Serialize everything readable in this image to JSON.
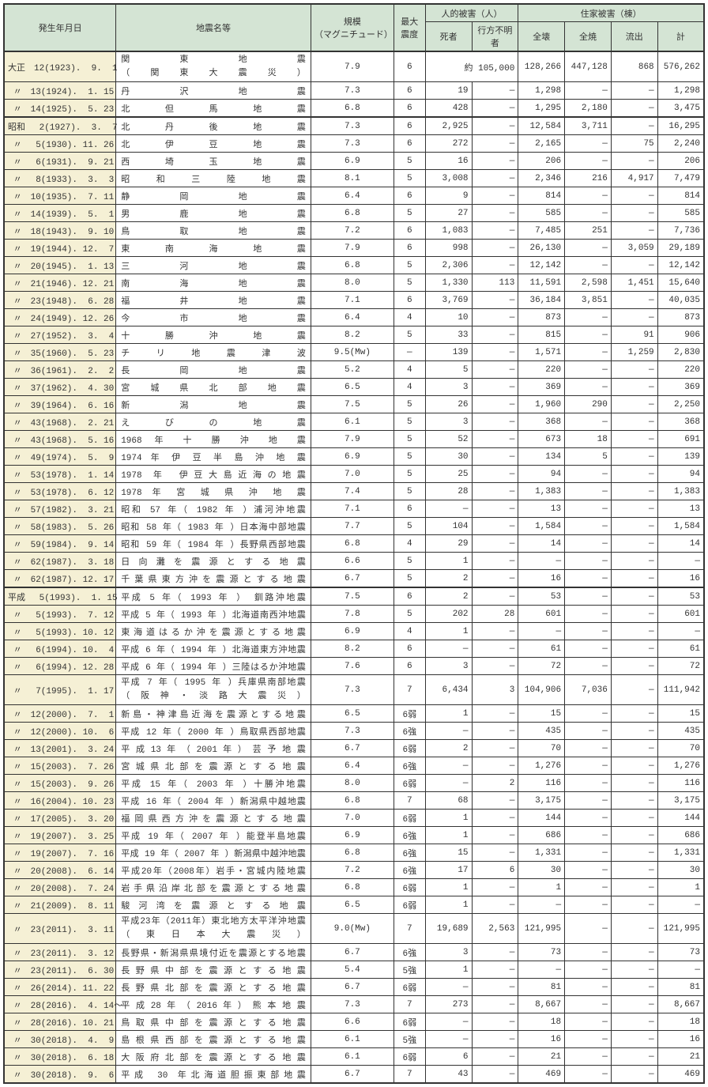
{
  "headers": {
    "date": "発生年月日",
    "name": "地震名等",
    "magnitude": "規模\n（マグニチュード）",
    "intensity": "最大\n震度",
    "human_damage": "人的被害（人）",
    "deaths": "死者",
    "missing": "行方不明者",
    "house_damage": "住家被害（棟）",
    "destroyed": "全壊",
    "burned": "全焼",
    "washed": "流出",
    "total": "計"
  },
  "rows": [
    {
      "era": "taisho",
      "estart": true,
      "date": "大正　12(1923).  9.  1",
      "name": "関　　　東　　　地　　　震\n（　関　東　大　震　災　）",
      "mag": "7.9",
      "int": "6",
      "d": "",
      "m": "約 105,000",
      "dest": "128,266",
      "burn": "447,128",
      "wash": "868",
      "tot": "576,262",
      "nameLines": 2
    },
    {
      "era": "taisho",
      "date": " 〃　13(1924).  1. 15",
      "name": "丹　　沢　　地　　震",
      "mag": "7.3",
      "int": "6",
      "d": "19",
      "m": "—",
      "dest": "1,298",
      "burn": "—",
      "wash": "—",
      "tot": "1,298"
    },
    {
      "era": "taisho",
      "date": " 〃　14(1925).  5. 23",
      "name": "北　但　馬　地　震",
      "mag": "6.8",
      "int": "6",
      "d": "428",
      "m": "—",
      "dest": "1,295",
      "burn": "2,180",
      "wash": "—",
      "tot": "3,475"
    },
    {
      "era": "showa",
      "estart": true,
      "date": "昭和　 2(1927).  3.  7",
      "name": "北　丹　後　地　震",
      "mag": "7.3",
      "int": "6",
      "d": "2,925",
      "m": "—",
      "dest": "12,584",
      "burn": "3,711",
      "wash": "—",
      "tot": "16,295"
    },
    {
      "era": "showa",
      "date": " 〃　 5(1930). 11. 26",
      "name": "北　伊　豆　地　震",
      "mag": "7.3",
      "int": "6",
      "d": "272",
      "m": "—",
      "dest": "2,165",
      "burn": "—",
      "wash": "75",
      "tot": "2,240"
    },
    {
      "era": "showa",
      "date": " 〃　 6(1931).  9. 21",
      "name": "西　埼　玉　地　震",
      "mag": "6.9",
      "int": "5",
      "d": "16",
      "m": "—",
      "dest": "206",
      "burn": "—",
      "wash": "—",
      "tot": "206"
    },
    {
      "era": "showa",
      "date": " 〃　 8(1933).  3.  3",
      "name": "昭　和　三　陸　地　震",
      "mag": "8.1",
      "int": "5",
      "d": "3,008",
      "m": "—",
      "dest": "2,346",
      "burn": "216",
      "wash": "4,917",
      "tot": "7,479"
    },
    {
      "era": "showa",
      "date": " 〃　10(1935).  7. 11",
      "name": "静　　岡　　地　　震",
      "mag": "6.4",
      "int": "6",
      "d": "9",
      "m": "—",
      "dest": "814",
      "burn": "—",
      "wash": "—",
      "tot": "814"
    },
    {
      "era": "showa",
      "date": " 〃　14(1939).  5.  1",
      "name": "男　　鹿　　地　　震",
      "mag": "6.8",
      "int": "5",
      "d": "27",
      "m": "—",
      "dest": "585",
      "burn": "—",
      "wash": "—",
      "tot": "585"
    },
    {
      "era": "showa",
      "date": " 〃　18(1943).  9. 10",
      "name": "鳥　　取　　地　　震",
      "mag": "7.2",
      "int": "6",
      "d": "1,083",
      "m": "—",
      "dest": "7,485",
      "burn": "251",
      "wash": "—",
      "tot": "7,736"
    },
    {
      "era": "showa",
      "date": " 〃　19(1944). 12.  7",
      "name": "東　南　海　地　震",
      "mag": "7.9",
      "int": "6",
      "d": "998",
      "m": "—",
      "dest": "26,130",
      "burn": "—",
      "wash": "3,059",
      "tot": "29,189"
    },
    {
      "era": "showa",
      "date": " 〃　20(1945).  1. 13",
      "name": "三　　河　　地　　震",
      "mag": "6.8",
      "int": "5",
      "d": "2,306",
      "m": "—",
      "dest": "12,142",
      "burn": "—",
      "wash": "—",
      "tot": "12,142"
    },
    {
      "era": "showa",
      "date": " 〃　21(1946). 12. 21",
      "name": "南　　海　　地　　震",
      "mag": "8.0",
      "int": "5",
      "d": "1,330",
      "m": "113",
      "dest": "11,591",
      "burn": "2,598",
      "wash": "1,451",
      "tot": "15,640"
    },
    {
      "era": "showa",
      "date": " 〃　23(1948).  6. 28",
      "name": "福　　井　　地　　震",
      "mag": "7.1",
      "int": "6",
      "d": "3,769",
      "m": "—",
      "dest": "36,184",
      "burn": "3,851",
      "wash": "—",
      "tot": "40,035"
    },
    {
      "era": "showa",
      "date": " 〃　24(1949). 12. 26",
      "name": "今　　市　　地　　震",
      "mag": "6.4",
      "int": "4",
      "d": "10",
      "m": "—",
      "dest": "873",
      "burn": "—",
      "wash": "—",
      "tot": "873"
    },
    {
      "era": "showa",
      "date": " 〃　27(1952).  3.  4",
      "name": "十　勝　沖　地　震",
      "mag": "8.2",
      "int": "5",
      "d": "33",
      "m": "—",
      "dest": "815",
      "burn": "—",
      "wash": "91",
      "tot": "906"
    },
    {
      "era": "showa",
      "date": " 〃　35(1960).  5. 23",
      "name": "チ　リ　地　震　津　波",
      "mag": "9.5(Mw)",
      "int": "—",
      "d": "139",
      "m": "—",
      "dest": "1,571",
      "burn": "—",
      "wash": "1,259",
      "tot": "2,830"
    },
    {
      "era": "showa",
      "date": " 〃　36(1961).  2.  2",
      "name": "長　　岡　　地　　震",
      "mag": "5.2",
      "int": "4",
      "d": "5",
      "m": "—",
      "dest": "220",
      "burn": "—",
      "wash": "—",
      "tot": "220"
    },
    {
      "era": "showa",
      "date": " 〃　37(1962).  4. 30",
      "name": "宮 城 県 北 部 地 震",
      "mag": "6.5",
      "int": "4",
      "d": "3",
      "m": "—",
      "dest": "369",
      "burn": "—",
      "wash": "—",
      "tot": "369"
    },
    {
      "era": "showa",
      "date": " 〃　39(1964).  6. 16",
      "name": "新　　潟　　地　　震",
      "mag": "7.5",
      "int": "5",
      "d": "26",
      "m": "—",
      "dest": "1,960",
      "burn": "290",
      "wash": "—",
      "tot": "2,250"
    },
    {
      "era": "showa",
      "date": " 〃　43(1968).  2. 21",
      "name": "え び の 地 震",
      "mag": "6.1",
      "int": "5",
      "d": "3",
      "m": "—",
      "dest": "368",
      "burn": "—",
      "wash": "—",
      "tot": "368"
    },
    {
      "era": "showa",
      "date": " 〃　43(1968).  5. 16",
      "name": "1968 年 十 勝 沖 地 震",
      "mag": "7.9",
      "int": "5",
      "d": "52",
      "m": "—",
      "dest": "673",
      "burn": "18",
      "wash": "—",
      "tot": "691"
    },
    {
      "era": "showa",
      "date": " 〃　49(1974).  5.  9",
      "name": "1974 年 伊 豆 半 島 沖 地 震",
      "mag": "6.9",
      "int": "5",
      "d": "30",
      "m": "—",
      "dest": "134",
      "burn": "5",
      "wash": "—",
      "tot": "139"
    },
    {
      "era": "showa",
      "date": " 〃　53(1978).  1. 14",
      "name": "1978 年 伊豆大島近海の地震",
      "mag": "7.0",
      "int": "5",
      "d": "25",
      "m": "—",
      "dest": "94",
      "burn": "—",
      "wash": "—",
      "tot": "94"
    },
    {
      "era": "showa",
      "date": " 〃　53(1978).  6. 12",
      "name": "1978 年 宮 城 県 沖 地 震",
      "mag": "7.4",
      "int": "5",
      "d": "28",
      "m": "—",
      "dest": "1,383",
      "burn": "—",
      "wash": "—",
      "tot": "1,383"
    },
    {
      "era": "showa",
      "date": " 〃　57(1982).  3. 21",
      "name": "昭和 57 年（ 1982 年 ）浦河沖地震",
      "mag": "7.1",
      "int": "6",
      "d": "—",
      "m": "—",
      "dest": "13",
      "burn": "—",
      "wash": "—",
      "tot": "13"
    },
    {
      "era": "showa",
      "date": " 〃　58(1983).  5. 26",
      "name": "昭和 58 年（ 1983 年 ）日本海中部地震",
      "mag": "7.7",
      "int": "5",
      "d": "104",
      "m": "—",
      "dest": "1,584",
      "burn": "—",
      "wash": "—",
      "tot": "1,584"
    },
    {
      "era": "showa",
      "date": " 〃　59(1984).  9. 14",
      "name": "昭和 59 年（ 1984 年 ）長野県西部地震",
      "mag": "6.8",
      "int": "4",
      "d": "29",
      "m": "—",
      "dest": "14",
      "burn": "—",
      "wash": "—",
      "tot": "14"
    },
    {
      "era": "showa",
      "date": " 〃　62(1987).  3. 18",
      "name": "日 向 灘 を 震 源 と す る 地 震",
      "mag": "6.6",
      "int": "5",
      "d": "1",
      "m": "—",
      "dest": "—",
      "burn": "—",
      "wash": "—",
      "tot": "—"
    },
    {
      "era": "showa",
      "date": " 〃　62(1987). 12. 17",
      "name": "千葉県東方沖を震源とする地震",
      "mag": "6.7",
      "int": "5",
      "d": "2",
      "m": "—",
      "dest": "16",
      "burn": "—",
      "wash": "—",
      "tot": "16"
    },
    {
      "era": "heisei",
      "estart": true,
      "date": "平成　 5(1993).  1. 15",
      "name": "平成 5 年（ 1993 年 ） 釧路沖地震",
      "mag": "7.5",
      "int": "6",
      "d": "2",
      "m": "—",
      "dest": "53",
      "burn": "—",
      "wash": "—",
      "tot": "53"
    },
    {
      "era": "heisei",
      "date": " 〃　 5(1993).  7. 12",
      "name": "平成 5 年（ 1993 年 ）北海道南西沖地震",
      "mag": "7.8",
      "int": "5",
      "d": "202",
      "m": "28",
      "dest": "601",
      "burn": "—",
      "wash": "—",
      "tot": "601"
    },
    {
      "era": "heisei",
      "date": " 〃　 5(1993). 10. 12",
      "name": "東海道はるか沖を震源とする地震",
      "mag": "6.9",
      "int": "4",
      "d": "1",
      "m": "—",
      "dest": "—",
      "burn": "—",
      "wash": "—",
      "tot": "—"
    },
    {
      "era": "heisei",
      "date": " 〃　 6(1994). 10.  4",
      "name": "平成 6 年（ 1994 年 ）北海道東方沖地震",
      "mag": "8.2",
      "int": "6",
      "d": "—",
      "m": "—",
      "dest": "61",
      "burn": "—",
      "wash": "—",
      "tot": "61"
    },
    {
      "era": "heisei",
      "date": " 〃　 6(1994). 12. 28",
      "name": "平成 6 年（ 1994 年 ）三陸はるか沖地震",
      "mag": "7.6",
      "int": "6",
      "d": "3",
      "m": "—",
      "dest": "72",
      "burn": "—",
      "wash": "—",
      "tot": "72"
    },
    {
      "era": "heisei",
      "date": " 〃　 7(1995).  1. 17",
      "name": "平成 7 年（ 1995 年 ）兵庫県南部地震\n（ 阪 神 ・ 淡 路 大 震 災 ）",
      "mag": "7.3",
      "int": "7",
      "d": "6,434",
      "m": "3",
      "dest": "104,906",
      "burn": "7,036",
      "wash": "—",
      "tot": "111,942",
      "nameLines": 2
    },
    {
      "era": "heisei",
      "date": " 〃　12(2000).  7.  1",
      "name": "新島・神津島近海を震源とする地震",
      "mag": "6.5",
      "int": "6弱",
      "d": "1",
      "m": "—",
      "dest": "15",
      "burn": "—",
      "wash": "—",
      "tot": "15"
    },
    {
      "era": "heisei",
      "date": " 〃　12(2000). 10.  6",
      "name": "平成 12 年（ 2000 年 ）鳥取県西部地震",
      "mag": "7.3",
      "int": "6強",
      "d": "—",
      "m": "—",
      "dest": "435",
      "burn": "—",
      "wash": "—",
      "tot": "435"
    },
    {
      "era": "heisei",
      "date": " 〃　13(2001).  3. 24",
      "name": "平 成 13 年 （ 2001 年 ） 芸 予 地 震",
      "mag": "6.7",
      "int": "6弱",
      "d": "2",
      "m": "—",
      "dest": "70",
      "burn": "—",
      "wash": "—",
      "tot": "70"
    },
    {
      "era": "heisei",
      "date": " 〃　15(2003).  7. 26",
      "name": "宮 城 県 北 部 を 震 源 と す る 地 震",
      "mag": "6.4",
      "int": "6強",
      "d": "—",
      "m": "—",
      "dest": "1,276",
      "burn": "—",
      "wash": "—",
      "tot": "1,276"
    },
    {
      "era": "heisei",
      "date": " 〃　15(2003).  9. 26",
      "name": "平成 15 年（ 2003 年 ）十勝沖地震",
      "mag": "8.0",
      "int": "6弱",
      "d": "—",
      "m": "2",
      "dest": "116",
      "burn": "—",
      "wash": "—",
      "tot": "116"
    },
    {
      "era": "heisei",
      "date": " 〃　16(2004). 10. 23",
      "name": "平成 16 年（ 2004 年 ）新潟県中越地震",
      "mag": "6.8",
      "int": "7",
      "d": "68",
      "m": "—",
      "dest": "3,175",
      "burn": "—",
      "wash": "—",
      "tot": "3,175"
    },
    {
      "era": "heisei",
      "date": " 〃　17(2005).  3. 20",
      "name": "福岡県西方沖を震源とする地震",
      "mag": "7.0",
      "int": "6弱",
      "d": "1",
      "m": "—",
      "dest": "144",
      "burn": "—",
      "wash": "—",
      "tot": "144"
    },
    {
      "era": "heisei",
      "date": " 〃　19(2007).  3. 25",
      "name": "平成 19 年（ 2007 年 ）能登半島地震",
      "mag": "6.9",
      "int": "6強",
      "d": "1",
      "m": "—",
      "dest": "686",
      "burn": "—",
      "wash": "—",
      "tot": "686"
    },
    {
      "era": "heisei",
      "date": " 〃　19(2007).  7. 16",
      "name": "平成 19 年（ 2007 年 ）新潟県中越沖地震",
      "mag": "6.8",
      "int": "6強",
      "d": "15",
      "m": "—",
      "dest": "1,331",
      "burn": "—",
      "wash": "—",
      "tot": "1,331"
    },
    {
      "era": "heisei",
      "date": " 〃　20(2008).  6. 14",
      "name": "平成20年（2008年）岩手・宮城内陸地震",
      "mag": "7.2",
      "int": "6強",
      "d": "17",
      "m": "6",
      "dest": "30",
      "burn": "—",
      "wash": "—",
      "tot": "30"
    },
    {
      "era": "heisei",
      "date": " 〃　20(2008).  7. 24",
      "name": "岩手県沿岸北部を震源とする地震",
      "mag": "6.8",
      "int": "6弱",
      "d": "1",
      "m": "—",
      "dest": "1",
      "burn": "—",
      "wash": "—",
      "tot": "1"
    },
    {
      "era": "heisei",
      "date": " 〃　21(2009).  8. 11",
      "name": "駿 河 湾 を 震 源 と す る 地 震",
      "mag": "6.5",
      "int": "6弱",
      "d": "1",
      "m": "—",
      "dest": "—",
      "burn": "—",
      "wash": "—",
      "tot": "—"
    },
    {
      "era": "heisei",
      "date": " 〃　23(2011).  3. 11",
      "name": "平成23年（2011年）東北地方太平洋沖地震\n（ 東 日 本 大 震 災 ）",
      "mag": "9.0(Mw)",
      "int": "7",
      "d": "19,689",
      "m": "2,563",
      "dest": "121,995",
      "burn": "—",
      "wash": "—",
      "tot": "121,995",
      "nameLines": 2
    },
    {
      "era": "heisei",
      "date": " 〃　23(2011).  3. 12",
      "name": "長野県・新潟県県境付近を震源とする地震",
      "mag": "6.7",
      "int": "6強",
      "d": "3",
      "m": "—",
      "dest": "73",
      "burn": "—",
      "wash": "—",
      "tot": "73"
    },
    {
      "era": "heisei",
      "date": " 〃　23(2011).  6. 30",
      "name": "長 野 県 中 部 を 震 源 と す る 地 震",
      "mag": "5.4",
      "int": "5強",
      "d": "1",
      "m": "—",
      "dest": "—",
      "burn": "—",
      "wash": "—",
      "tot": "—"
    },
    {
      "era": "heisei",
      "date": " 〃　26(2014). 11. 22",
      "name": "長 野 県 北 部 を 震 源 と す る 地 震",
      "mag": "6.7",
      "int": "6弱",
      "d": "—",
      "m": "—",
      "dest": "81",
      "burn": "—",
      "wash": "—",
      "tot": "81"
    },
    {
      "era": "heisei",
      "date": " 〃　28(2016).  4. 14〜",
      "name": "平 成 28 年 （ 2016 年 ） 熊 本 地 震",
      "mag": "7.3",
      "int": "7",
      "d": "273",
      "m": "—",
      "dest": "8,667",
      "burn": "—",
      "wash": "—",
      "tot": "8,667"
    },
    {
      "era": "heisei",
      "date": " 〃　28(2016). 10. 21",
      "name": "鳥 取 県 中 部 を 震 源 と す る 地 震",
      "mag": "6.6",
      "int": "6弱",
      "d": "—",
      "m": "—",
      "dest": "18",
      "burn": "—",
      "wash": "—",
      "tot": "18"
    },
    {
      "era": "heisei",
      "date": " 〃　30(2018).  4.  9",
      "name": "島 根 県 西 部 を 震 源 と す る 地 震",
      "mag": "6.1",
      "int": "5強",
      "d": "—",
      "m": "—",
      "dest": "16",
      "burn": "—",
      "wash": "—",
      "tot": "16"
    },
    {
      "era": "heisei",
      "date": " 〃　30(2018).  6. 18",
      "name": "大 阪 府 北 部 を 震 源 と す る 地 震",
      "mag": "6.1",
      "int": "6弱",
      "d": "6",
      "m": "—",
      "dest": "21",
      "burn": "—",
      "wash": "—",
      "tot": "21"
    },
    {
      "era": "heisei",
      "date": " 〃　30(2018).  9.  6",
      "name": "平成 30 年北海道胆振東部地震",
      "mag": "6.7",
      "int": "7",
      "d": "43",
      "m": "—",
      "dest": "469",
      "burn": "—",
      "wash": "—",
      "tot": "469"
    }
  ]
}
